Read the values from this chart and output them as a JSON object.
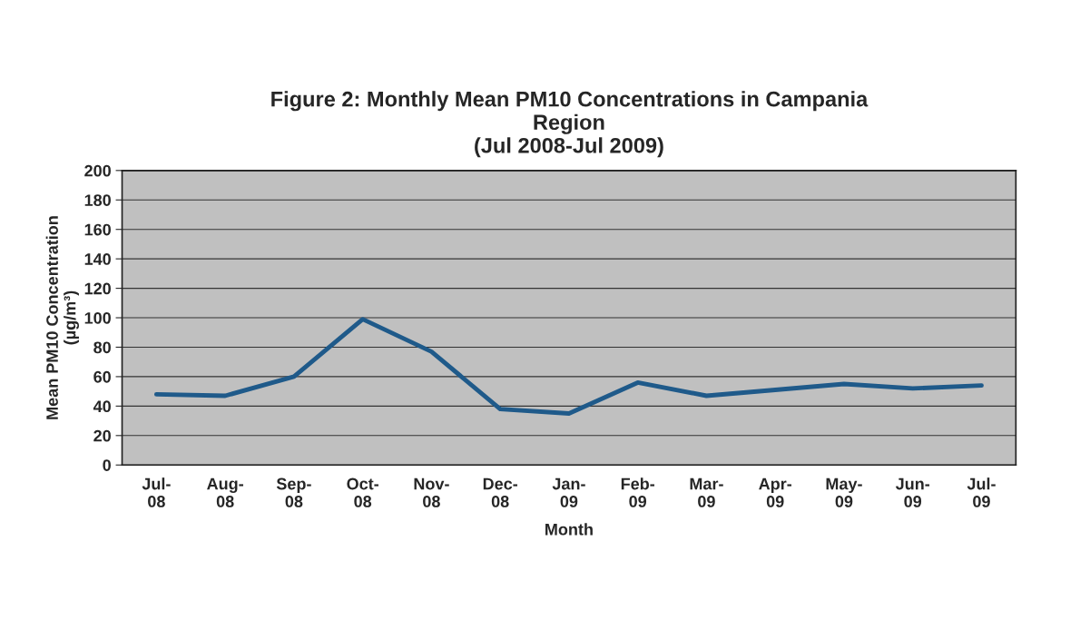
{
  "chart_data": {
    "type": "line",
    "title": "Figure 2: Monthly Mean PM10 Concentrations in Campania\nRegion\n(Jul 2008-Jul 2009)",
    "xlabel": "Month",
    "ylabel": "Mean PM10 Concentration\n(µg/m³)",
    "categories": [
      "Jul-\n08",
      "Aug-\n08",
      "Sep-\n08",
      "Oct-\n08",
      "Nov-\n08",
      "Dec-\n08",
      "Jan-\n09",
      "Feb-\n09",
      "Mar-\n09",
      "Apr-\n09",
      "May-\n09",
      "Jun-\n09",
      "Jul-\n09"
    ],
    "series": [
      {
        "color": "#1f5a8a",
        "values": [
          48,
          47,
          60,
          99,
          77,
          38,
          35,
          56,
          47,
          51,
          55,
          52,
          54
        ]
      }
    ],
    "ylim": [
      0,
      200
    ],
    "yticks": [
      0,
      20,
      40,
      60,
      80,
      100,
      120,
      140,
      160,
      180,
      200
    ],
    "grid": "y",
    "marker": "none",
    "line_style": "solid"
  }
}
